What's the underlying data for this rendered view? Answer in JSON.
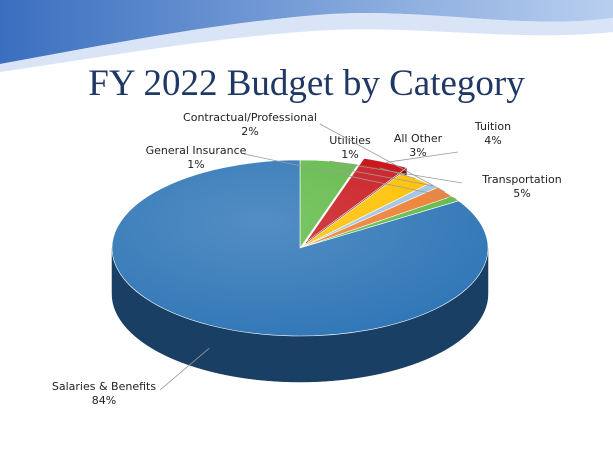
{
  "slide": {
    "title": "FY 2022 Budget by Category"
  },
  "colors": {
    "wave_dark": "#3a6fbf",
    "wave_light": "#b9cff0",
    "title": "#1f3864",
    "leader_line": "#9a9a9a"
  },
  "chart_data": {
    "type": "pie",
    "three_d": true,
    "title": "FY 2022 Budget by Category",
    "slices": [
      {
        "name": "Transportation",
        "value": 5,
        "label": "5%",
        "color": "#5fb946",
        "exploded": false
      },
      {
        "name": "Tuition",
        "value": 4,
        "label": "4%",
        "color": "#c8191e",
        "exploded": true
      },
      {
        "name": "All Other",
        "value": 3,
        "label": "3%",
        "color": "#ffc000",
        "exploded": false
      },
      {
        "name": "Utilities",
        "value": 1,
        "label": "1%",
        "color": "#9dc3e6",
        "exploded": false
      },
      {
        "name": "Contractual/Professional",
        "value": 2,
        "label": "2%",
        "color": "#ed7d31",
        "exploded": false
      },
      {
        "name": "General Insurance",
        "value": 1,
        "label": "1%",
        "color": "#5fb946",
        "exploded": false
      },
      {
        "name": "Salaries & Benefits",
        "value": 84,
        "label": "84%",
        "color": "#2e75b6",
        "exploded": false
      }
    ]
  }
}
